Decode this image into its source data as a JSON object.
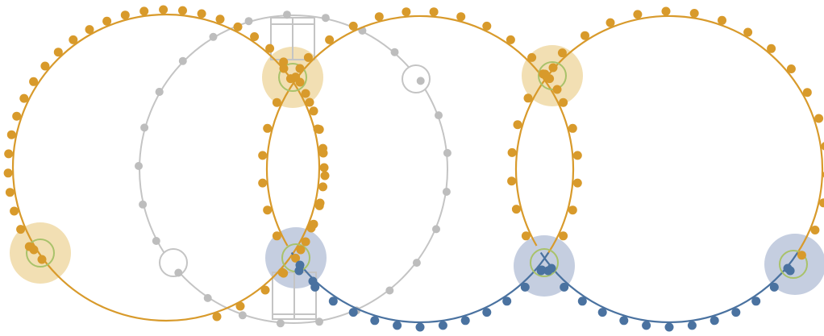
{
  "diagram": {
    "colors": {
      "background": "#ffffff",
      "gold": "#d89a2b",
      "gold_halo": "#f2dfb3",
      "blue": "#4a72a0",
      "blue_halo": "#c5cee0",
      "gray": "#bdbdbd",
      "gray_line": "#c4c4c4",
      "ring_green": "#a9c26a"
    }
  }
}
